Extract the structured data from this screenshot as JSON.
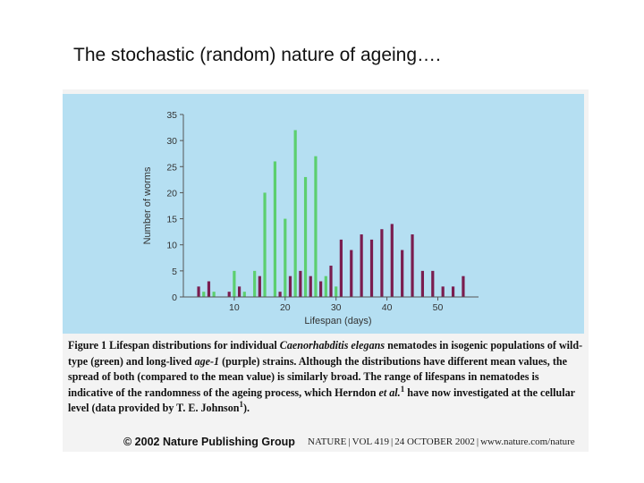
{
  "slide": {
    "title": "The stochastic (random) nature of ageing…."
  },
  "colors": {
    "panel_background": "#b5dff2",
    "wild_type": "#5ccf6f",
    "age_1": "#7a1d4f",
    "axis": "#555555"
  },
  "chart_data": {
    "type": "bar",
    "title": "",
    "xlabel": "Lifespan (days)",
    "ylabel": "Number of worms",
    "xlim": [
      0,
      58
    ],
    "ylim": [
      0,
      35
    ],
    "xticks": [
      10,
      20,
      30,
      40,
      50
    ],
    "yticks": [
      0,
      5,
      10,
      15,
      20,
      25,
      30,
      35
    ],
    "grid": false,
    "legend": "none",
    "series": [
      {
        "color": "green",
        "x": [
          4,
          6,
          8,
          10,
          12,
          14,
          16,
          18,
          20,
          22,
          24,
          26,
          28,
          30
        ],
        "values": [
          1,
          1,
          0,
          5,
          1,
          5,
          20,
          26,
          15,
          32,
          23,
          27,
          4,
          2
        ]
      },
      {
        "color": "purple",
        "x": [
          3,
          5,
          9,
          11,
          15,
          19,
          21,
          23,
          25,
          27,
          29,
          31,
          33,
          35,
          37,
          39,
          41,
          43,
          45,
          47,
          49,
          51,
          53,
          55
        ],
        "values": [
          2,
          3,
          1,
          2,
          4,
          1,
          4,
          5,
          4,
          3,
          6,
          11,
          9,
          12,
          11,
          13,
          14,
          9,
          12,
          5,
          5,
          2,
          2,
          4
        ]
      }
    ]
  },
  "caption": {
    "prefix": "Figure 1 Lifespan distributions for individual",
    "species": "Caenorhabditis elegans",
    "part2": "nematodes in isogenic populations of wild-type (green) and long-lived",
    "strain": "age-1",
    "part3": "(purple) strains. Although the distributions have different mean values, the spread of both (compared to the mean value) is similarly broad. The range of lifespans in nematodes is indicative of the randomness of the ageing process, which Herndon",
    "etal": "et al.",
    "ref1": "1",
    "part4": "have now investigated at the cellular level (data provided by T. E. Johnson",
    "ref2": "1",
    "part5": ")."
  },
  "footer": {
    "copyright": "© 2002 Nature Publishing Group",
    "journal": "NATURE",
    "volume": "VOL 419",
    "date": "24 OCTOBER 2002",
    "url": "www.nature.com/nature"
  }
}
